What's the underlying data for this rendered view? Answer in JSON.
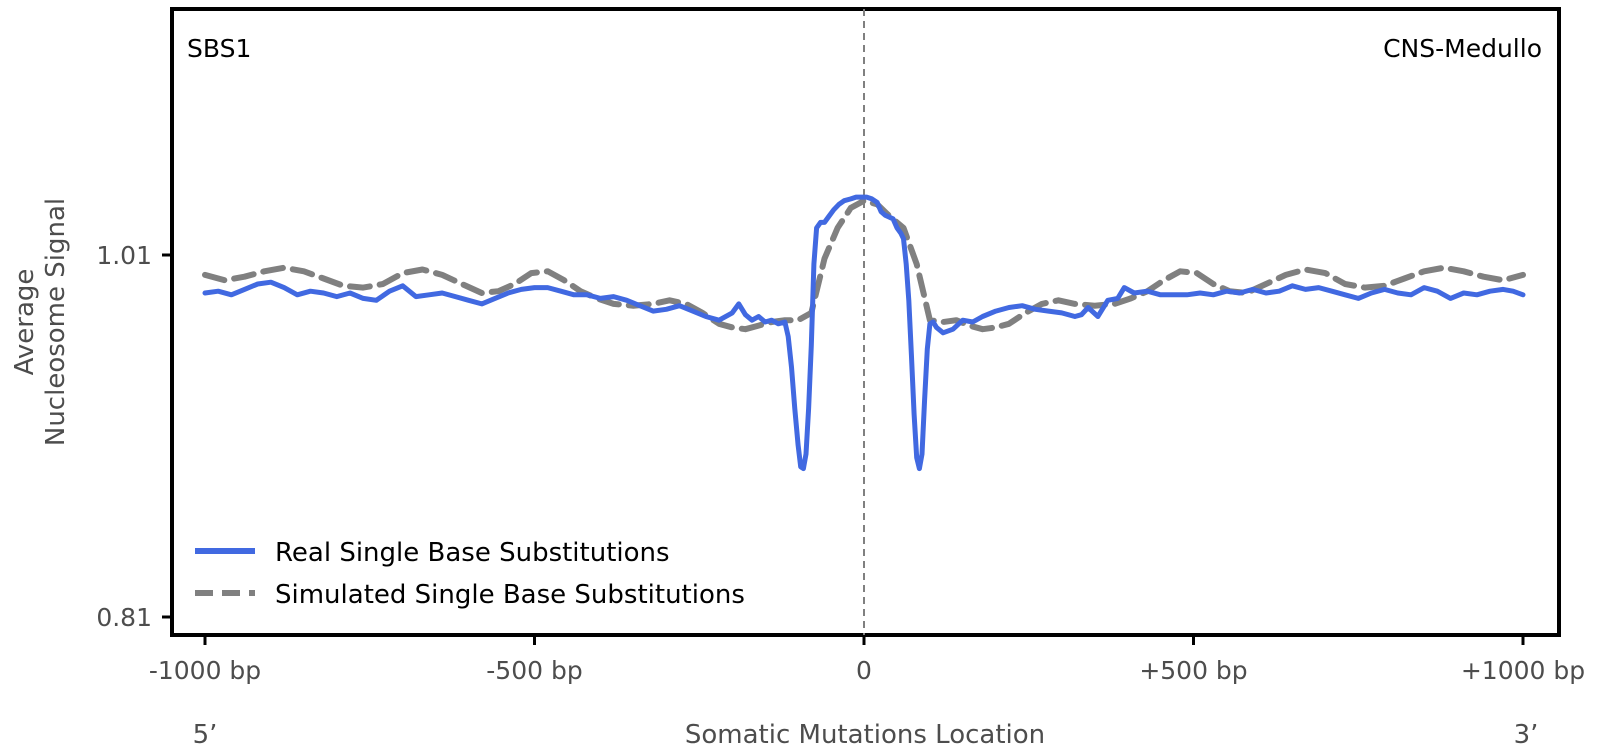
{
  "chart_data": {
    "type": "line",
    "title": "",
    "top_left_label": "SBS1",
    "top_right_label": "CNS-Medullo",
    "xlabel": "Somatic Mutations Location",
    "xlabel_left": "5’",
    "xlabel_right": "3’",
    "ylabel_line1": "Average",
    "ylabel_line2": "Nucleosome Signal",
    "xlim": [
      -1000,
      1000
    ],
    "ylim": [
      0.8,
      1.15
    ],
    "x_ticks": [
      {
        "value": -1000,
        "label": "-1000 bp"
      },
      {
        "value": -500,
        "label": "-500 bp"
      },
      {
        "value": 0,
        "label": "0"
      },
      {
        "value": 500,
        "label": "+500 bp"
      },
      {
        "value": 1000,
        "label": "+1000 bp"
      }
    ],
    "y_ticks": [
      {
        "value": 1.01,
        "label": "1.01"
      },
      {
        "value": 0.81,
        "label": "0.81"
      }
    ],
    "center_line_x": 0,
    "legend_position": "lower-left",
    "series": [
      {
        "name": "Real Single Base Substitutions",
        "color": "#4169E1",
        "style": "solid",
        "points": [
          [
            -1000,
            0.989
          ],
          [
            -980,
            0.99
          ],
          [
            -960,
            0.988
          ],
          [
            -940,
            0.991
          ],
          [
            -920,
            0.994
          ],
          [
            -900,
            0.995
          ],
          [
            -880,
            0.992
          ],
          [
            -860,
            0.988
          ],
          [
            -840,
            0.99
          ],
          [
            -820,
            0.989
          ],
          [
            -800,
            0.987
          ],
          [
            -780,
            0.989
          ],
          [
            -760,
            0.986
          ],
          [
            -740,
            0.985
          ],
          [
            -720,
            0.99
          ],
          [
            -700,
            0.993
          ],
          [
            -680,
            0.987
          ],
          [
            -660,
            0.988
          ],
          [
            -640,
            0.989
          ],
          [
            -620,
            0.987
          ],
          [
            -600,
            0.985
          ],
          [
            -580,
            0.983
          ],
          [
            -560,
            0.986
          ],
          [
            -540,
            0.989
          ],
          [
            -520,
            0.991
          ],
          [
            -500,
            0.992
          ],
          [
            -480,
            0.992
          ],
          [
            -460,
            0.99
          ],
          [
            -440,
            0.988
          ],
          [
            -420,
            0.988
          ],
          [
            -400,
            0.986
          ],
          [
            -380,
            0.987
          ],
          [
            -360,
            0.985
          ],
          [
            -340,
            0.982
          ],
          [
            -320,
            0.979
          ],
          [
            -300,
            0.98
          ],
          [
            -280,
            0.982
          ],
          [
            -260,
            0.979
          ],
          [
            -240,
            0.976
          ],
          [
            -220,
            0.974
          ],
          [
            -200,
            0.978
          ],
          [
            -190,
            0.983
          ],
          [
            -180,
            0.977
          ],
          [
            -170,
            0.974
          ],
          [
            -160,
            0.976
          ],
          [
            -150,
            0.973
          ],
          [
            -140,
            0.974
          ],
          [
            -130,
            0.972
          ],
          [
            -120,
            0.973
          ],
          [
            -115,
            0.965
          ],
          [
            -110,
            0.948
          ],
          [
            -105,
            0.925
          ],
          [
            -100,
            0.905
          ],
          [
            -96,
            0.893
          ],
          [
            -92,
            0.892
          ],
          [
            -88,
            0.9
          ],
          [
            -84,
            0.925
          ],
          [
            -80,
            0.96
          ],
          [
            -76,
            1.005
          ],
          [
            -72,
            1.025
          ],
          [
            -66,
            1.028
          ],
          [
            -60,
            1.028
          ],
          [
            -54,
            1.031
          ],
          [
            -46,
            1.035
          ],
          [
            -38,
            1.038
          ],
          [
            -30,
            1.04
          ],
          [
            -20,
            1.041
          ],
          [
            -12,
            1.042
          ],
          [
            -4,
            1.042
          ],
          [
            4,
            1.042
          ],
          [
            12,
            1.041
          ],
          [
            20,
            1.039
          ],
          [
            26,
            1.034
          ],
          [
            32,
            1.032
          ],
          [
            38,
            1.031
          ],
          [
            44,
            1.03
          ],
          [
            50,
            1.025
          ],
          [
            56,
            1.022
          ],
          [
            60,
            1.019
          ],
          [
            64,
            1.005
          ],
          [
            68,
            0.985
          ],
          [
            72,
            0.955
          ],
          [
            76,
            0.922
          ],
          [
            80,
            0.898
          ],
          [
            84,
            0.892
          ],
          [
            88,
            0.9
          ],
          [
            92,
            0.93
          ],
          [
            96,
            0.958
          ],
          [
            100,
            0.972
          ],
          [
            105,
            0.973
          ],
          [
            110,
            0.97
          ],
          [
            120,
            0.967
          ],
          [
            135,
            0.969
          ],
          [
            150,
            0.974
          ],
          [
            165,
            0.973
          ],
          [
            180,
            0.976
          ],
          [
            200,
            0.979
          ],
          [
            220,
            0.981
          ],
          [
            240,
            0.982
          ],
          [
            260,
            0.98
          ],
          [
            280,
            0.979
          ],
          [
            300,
            0.978
          ],
          [
            320,
            0.976
          ],
          [
            330,
            0.977
          ],
          [
            340,
            0.981
          ],
          [
            355,
            0.976
          ],
          [
            370,
            0.985
          ],
          [
            385,
            0.986
          ],
          [
            395,
            0.992
          ],
          [
            410,
            0.989
          ],
          [
            430,
            0.99
          ],
          [
            450,
            0.988
          ],
          [
            470,
            0.988
          ],
          [
            490,
            0.988
          ],
          [
            510,
            0.989
          ],
          [
            530,
            0.988
          ],
          [
            550,
            0.99
          ],
          [
            570,
            0.989
          ],
          [
            590,
            0.991
          ],
          [
            610,
            0.989
          ],
          [
            630,
            0.99
          ],
          [
            650,
            0.993
          ],
          [
            670,
            0.991
          ],
          [
            690,
            0.992
          ],
          [
            710,
            0.99
          ],
          [
            730,
            0.988
          ],
          [
            750,
            0.986
          ],
          [
            770,
            0.989
          ],
          [
            790,
            0.991
          ],
          [
            810,
            0.989
          ],
          [
            830,
            0.988
          ],
          [
            850,
            0.992
          ],
          [
            870,
            0.99
          ],
          [
            890,
            0.986
          ],
          [
            910,
            0.989
          ],
          [
            930,
            0.988
          ],
          [
            950,
            0.99
          ],
          [
            970,
            0.991
          ],
          [
            985,
            0.99
          ],
          [
            1000,
            0.988
          ]
        ]
      },
      {
        "name": "Simulated Single Base Substitutions",
        "color": "#808080",
        "style": "dashed",
        "points": [
          [
            -1000,
            0.999
          ],
          [
            -970,
            0.996
          ],
          [
            -940,
            0.998
          ],
          [
            -910,
            1.001
          ],
          [
            -880,
            1.003
          ],
          [
            -850,
            1.001
          ],
          [
            -820,
            0.997
          ],
          [
            -790,
            0.993
          ],
          [
            -760,
            0.992
          ],
          [
            -730,
            0.994
          ],
          [
            -700,
            1.0
          ],
          [
            -670,
            1.002
          ],
          [
            -640,
            0.999
          ],
          [
            -610,
            0.994
          ],
          [
            -580,
            0.989
          ],
          [
            -555,
            0.99
          ],
          [
            -530,
            0.994
          ],
          [
            -505,
            1.0
          ],
          [
            -480,
            1.001
          ],
          [
            -455,
            0.996
          ],
          [
            -430,
            0.99
          ],
          [
            -405,
            0.986
          ],
          [
            -380,
            0.983
          ],
          [
            -350,
            0.982
          ],
          [
            -320,
            0.983
          ],
          [
            -295,
            0.985
          ],
          [
            -270,
            0.983
          ],
          [
            -245,
            0.978
          ],
          [
            -220,
            0.972
          ],
          [
            -200,
            0.97
          ],
          [
            -180,
            0.969
          ],
          [
            -160,
            0.971
          ],
          [
            -140,
            0.973
          ],
          [
            -120,
            0.974
          ],
          [
            -100,
            0.974
          ],
          [
            -80,
            0.978
          ],
          [
            -60,
            1.008
          ],
          [
            -40,
            1.025
          ],
          [
            -20,
            1.036
          ],
          [
            0,
            1.04
          ],
          [
            20,
            1.038
          ],
          [
            40,
            1.031
          ],
          [
            60,
            1.025
          ],
          [
            80,
            1.005
          ],
          [
            100,
            0.974
          ],
          [
            120,
            0.973
          ],
          [
            140,
            0.974
          ],
          [
            160,
            0.971
          ],
          [
            180,
            0.969
          ],
          [
            200,
            0.97
          ],
          [
            220,
            0.972
          ],
          [
            245,
            0.978
          ],
          [
            270,
            0.983
          ],
          [
            295,
            0.985
          ],
          [
            320,
            0.983
          ],
          [
            350,
            0.982
          ],
          [
            380,
            0.983
          ],
          [
            405,
            0.986
          ],
          [
            430,
            0.99
          ],
          [
            455,
            0.996
          ],
          [
            480,
            1.001
          ],
          [
            505,
            1.0
          ],
          [
            530,
            0.994
          ],
          [
            555,
            0.99
          ],
          [
            580,
            0.989
          ],
          [
            610,
            0.994
          ],
          [
            640,
            0.999
          ],
          [
            670,
            1.002
          ],
          [
            700,
            1.0
          ],
          [
            730,
            0.994
          ],
          [
            760,
            0.992
          ],
          [
            790,
            0.993
          ],
          [
            820,
            0.997
          ],
          [
            850,
            1.001
          ],
          [
            880,
            1.003
          ],
          [
            910,
            1.001
          ],
          [
            940,
            0.998
          ],
          [
            970,
            0.996
          ],
          [
            1000,
            0.999
          ]
        ]
      }
    ]
  }
}
